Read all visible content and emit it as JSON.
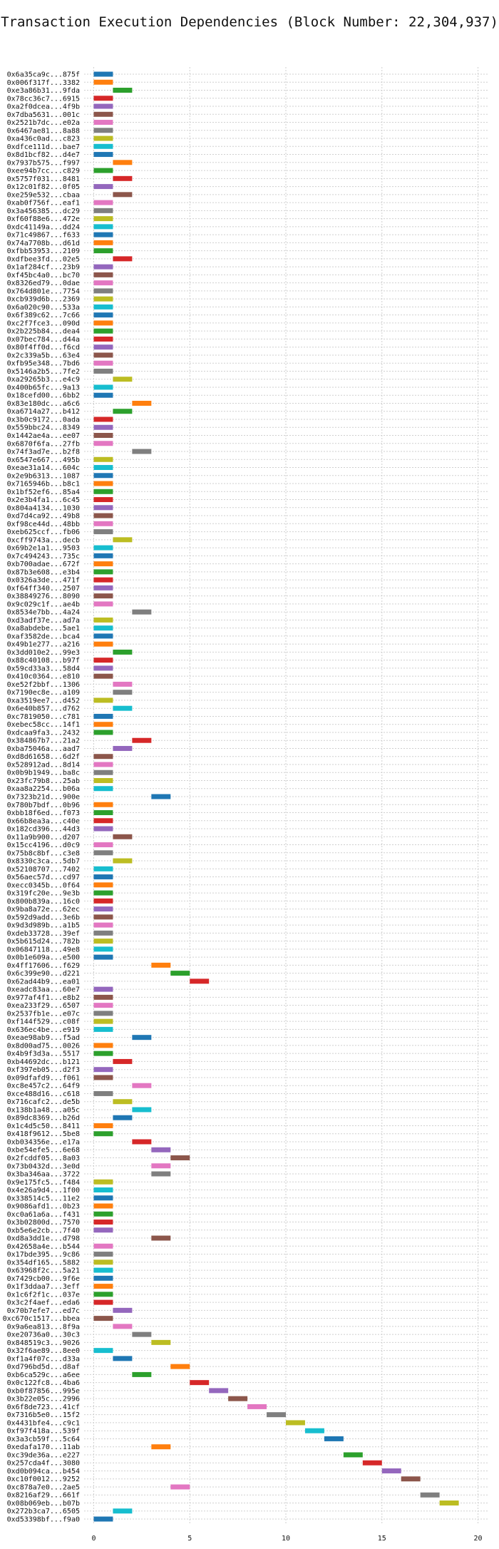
{
  "chart_data": {
    "type": "bar",
    "orientation": "horizontal",
    "title": "Transaction Execution Dependencies (Block Number: 22,304,937)",
    "xlabel": "",
    "ylabel": "",
    "xlim": [
      -0.5,
      20.5
    ],
    "xticks": [
      0,
      5,
      10,
      15,
      20
    ],
    "grid": true,
    "bar_width": 1,
    "palette": [
      "#1f77b4",
      "#ff7f0e",
      "#2ca02c",
      "#d62728",
      "#9467bd",
      "#8c564b",
      "#e377c2",
      "#7f7f7f",
      "#bcbd22",
      "#17becf"
    ],
    "transactions": [
      [
        "0x6a35ca9c...875f",
        0
      ],
      [
        "0x006f317f...3382",
        0
      ],
      [
        "0xe3a86b31...9fda",
        1
      ],
      [
        "0x78cc36c7...6915",
        0
      ],
      [
        "0xa2f0dcea...4f9b",
        0
      ],
      [
        "0x7dba5631...001c",
        0
      ],
      [
        "0x2521b7dc...e02a",
        0
      ],
      [
        "0x6467ae81...8a88",
        0
      ],
      [
        "0xa436c0ad...c823",
        0
      ],
      [
        "0xdfce111d...bae7",
        0
      ],
      [
        "0x8d1bcf82...d4e7",
        0
      ],
      [
        "0x7937b575...f997",
        1
      ],
      [
        "0xee94b7cc...c829",
        0
      ],
      [
        "0x5757f031...8481",
        1
      ],
      [
        "0x12c01f82...0f05",
        0
      ],
      [
        "0xe259e532...cbaa",
        1
      ],
      [
        "0xab0f756f...eaf1",
        0
      ],
      [
        "0x3a456385...dc29",
        0
      ],
      [
        "0xf60f88e6...472e",
        0
      ],
      [
        "0xdc41149a...dd24",
        0
      ],
      [
        "0x71c49867...f633",
        0
      ],
      [
        "0x74a7708b...d61d",
        0
      ],
      [
        "0xfbb53953...2109",
        0
      ],
      [
        "0xdfbee3fd...02e5",
        1
      ],
      [
        "0x1af284cf...23b9",
        0
      ],
      [
        "0xf45bc4a0...bc70",
        0
      ],
      [
        "0x8326ed79...0dae",
        0
      ],
      [
        "0x764d801e...7754",
        0
      ],
      [
        "0xcb939d6b...2369",
        0
      ],
      [
        "0x6a020c90...533a",
        0
      ],
      [
        "0x6f389c62...7c66",
        0
      ],
      [
        "0xc2f7fce3...090d",
        0
      ],
      [
        "0x2b225b84...dea4",
        0
      ],
      [
        "0x07bec784...d44a",
        0
      ],
      [
        "0x80f4ff0d...f6cd",
        0
      ],
      [
        "0x2c339a5b...63e4",
        0
      ],
      [
        "0xfb95e348...7bd6",
        0
      ],
      [
        "0x5146a2b5...7fe2",
        0
      ],
      [
        "0xa29265b3...e4c9",
        1
      ],
      [
        "0x400b65fc...9a13",
        0
      ],
      [
        "0x18cefd00...6bb2",
        0
      ],
      [
        "0x83e180dc...a6c6",
        2
      ],
      [
        "0xa6714a27...b412",
        1
      ],
      [
        "0x3b0c9172...0ada",
        0
      ],
      [
        "0x559bbc24...8349",
        0
      ],
      [
        "0x1442ae4a...ee07",
        0
      ],
      [
        "0x6870f6fa...27fb",
        0
      ],
      [
        "0x74f3ad7e...b2f8",
        2
      ],
      [
        "0x6547e667...495b",
        0
      ],
      [
        "0xeae31a14...604c",
        0
      ],
      [
        "0x2e9b6313...1087",
        0
      ],
      [
        "0x7165946b...b8c1",
        0
      ],
      [
        "0x1bf52ef6...85a4",
        0
      ],
      [
        "0x2e3b4fa1...6c45",
        0
      ],
      [
        "0x804a4134...1030",
        0
      ],
      [
        "0xd7d4ca92...49b8",
        0
      ],
      [
        "0xf98ce44d...48bb",
        0
      ],
      [
        "0xeb625ccf...fb06",
        0
      ],
      [
        "0xcff9743a...decb",
        1
      ],
      [
        "0x69b2e1a1...9503",
        0
      ],
      [
        "0x7c494243...735c",
        0
      ],
      [
        "0xb700adae...672f",
        0
      ],
      [
        "0x87b3e608...e3b4",
        0
      ],
      [
        "0x0326a3de...471f",
        0
      ],
      [
        "0xf64ff340...2507",
        0
      ],
      [
        "0x38849276...8090",
        0
      ],
      [
        "0x9c029c1f...ae4b",
        0
      ],
      [
        "0x8534e7bb...4a24",
        2
      ],
      [
        "0xd3adf37e...ad7a",
        0
      ],
      [
        "0xa8abdebe...5ae1",
        0
      ],
      [
        "0xaf3582de...bca4",
        0
      ],
      [
        "0x49b1e277...a216",
        0
      ],
      [
        "0x3dd010e2...99e3",
        1
      ],
      [
        "0x88c40108...b97f",
        0
      ],
      [
        "0x59cd33a3...58d4",
        0
      ],
      [
        "0x410c0364...e810",
        0
      ],
      [
        "0xe52f2bbf...1306",
        1
      ],
      [
        "0x7190ec8e...a109",
        1
      ],
      [
        "0xa3519ee7...d452",
        0
      ],
      [
        "0x6e40b857...d762",
        1
      ],
      [
        "0xc7819050...c781",
        0
      ],
      [
        "0xebec58cc...14f1",
        0
      ],
      [
        "0xdcaa9fa3...2432",
        0
      ],
      [
        "0x384867b7...21a2",
        2
      ],
      [
        "0xba75046a...aad7",
        1
      ],
      [
        "0xd8d61658...6d2f",
        0
      ],
      [
        "0x528912ad...8d14",
        0
      ],
      [
        "0x0b9b1949...ba8c",
        0
      ],
      [
        "0x23fc79b8...25ab",
        0
      ],
      [
        "0xaa8a2254...b06a",
        0
      ],
      [
        "0x7323b21d...900e",
        3
      ],
      [
        "0x780b7bdf...0b96",
        0
      ],
      [
        "0xbb18f6ed...f073",
        0
      ],
      [
        "0x66b8ea3a...c40e",
        0
      ],
      [
        "0x182cd396...44d3",
        0
      ],
      [
        "0x11a9b900...d207",
        1
      ],
      [
        "0x15cc4196...d0c9",
        0
      ],
      [
        "0x75b8c8bf...c3e8",
        0
      ],
      [
        "0x8330c3ca...5db7",
        1
      ],
      [
        "0x52108707...7402",
        0
      ],
      [
        "0x56aec57d...cd97",
        0
      ],
      [
        "0xecc0345b...0f64",
        0
      ],
      [
        "0x319fc20e...9e3b",
        0
      ],
      [
        "0x800b839a...16c0",
        0
      ],
      [
        "0x9ba8a72e...62ec",
        0
      ],
      [
        "0x592d9add...3e6b",
        0
      ],
      [
        "0x9d3d989b...a1b5",
        0
      ],
      [
        "0xdeb33728...39ef",
        0
      ],
      [
        "0x5b615d24...782b",
        0
      ],
      [
        "0x06847118...49e8",
        0
      ],
      [
        "0x0b1e609a...e500",
        0
      ],
      [
        "0x4ff17606...f629",
        3
      ],
      [
        "0x6c399e90...d221",
        4
      ],
      [
        "0x62ad44b9...ea01",
        5
      ],
      [
        "0xeadc83aa...60e7",
        0
      ],
      [
        "0x977af4f1...e8b2",
        0
      ],
      [
        "0xea233f29...6507",
        0
      ],
      [
        "0x2537fb1e...e07c",
        0
      ],
      [
        "0xf144f529...c08f",
        0
      ],
      [
        "0x636ec4be...e919",
        0
      ],
      [
        "0xeae98ab9...f5ad",
        2
      ],
      [
        "0x8d00ad75...0026",
        0
      ],
      [
        "0x4b9f3d3a...5517",
        0
      ],
      [
        "0xb44692dc...b121",
        1
      ],
      [
        "0xf397eb05...d2f3",
        0
      ],
      [
        "0x09dfafd9...f061",
        0
      ],
      [
        "0xc8e457c2...64f9",
        2
      ],
      [
        "0xce488d16...c618",
        0
      ],
      [
        "0x716cafc2...de5b",
        1
      ],
      [
        "0x138b1a48...a05c",
        2
      ],
      [
        "0x89dc8369...b26d",
        1
      ],
      [
        "0x1c4d5c50...8411",
        0
      ],
      [
        "0x418f9612...5be8",
        0
      ],
      [
        "0xb034356e...e17a",
        2
      ],
      [
        "0xbe54efe5...6e68",
        3
      ],
      [
        "0x2fcddf05...8a03",
        4
      ],
      [
        "0x73b0432d...3e0d",
        3
      ],
      [
        "0x3ba346aa...3722",
        3
      ],
      [
        "0x9e175fc5...f484",
        0
      ],
      [
        "0x4e26a9d4...1f00",
        0
      ],
      [
        "0x338514c5...11e2",
        0
      ],
      [
        "0x9086afd1...0b23",
        0
      ],
      [
        "0xc0a61a6a...f431",
        0
      ],
      [
        "0x3b02800d...7570",
        0
      ],
      [
        "0xb5e6e2cb...7f40",
        0
      ],
      [
        "0xd8a3dd1e...d798",
        3
      ],
      [
        "0x42658a4e...b544",
        0
      ],
      [
        "0x17bde395...9c86",
        0
      ],
      [
        "0x354df165...5882",
        0
      ],
      [
        "0x63968f2c...5a21",
        0
      ],
      [
        "0x7429cb00...9f6e",
        0
      ],
      [
        "0x1f3ddaa7...3eff",
        0
      ],
      [
        "0x1c6f2f1c...037e",
        0
      ],
      [
        "0x3c2f4aef...eda6",
        0
      ],
      [
        "0x70b7efe7...ed7c",
        1
      ],
      [
        "0xc670c1517...bbea",
        0
      ],
      [
        "0x9a6ea813...8f9a",
        1
      ],
      [
        "0xe20736a0...30c3",
        2
      ],
      [
        "0x848519c3...9026",
        3
      ],
      [
        "0x32f6ae89...8ee0",
        0
      ],
      [
        "0xf1a4f07c...d33a",
        1
      ],
      [
        "0xd796bd5d...d8af",
        4
      ],
      [
        "0xb6ca529c...a6ee",
        2
      ],
      [
        "0x0c122fc8...4ba6",
        5
      ],
      [
        "0xb0f87856...995e",
        6
      ],
      [
        "0x3b22e05c...2996",
        7
      ],
      [
        "0x6f8de723...41cf",
        8
      ],
      [
        "0x7316b5e0...15f2",
        9
      ],
      [
        "0x4431bfe4...c9c1",
        10
      ],
      [
        "0xf97f418a...539f",
        11
      ],
      [
        "0x3a3cb59f...5c64",
        12
      ],
      [
        "0xedafa170...11ab",
        3
      ],
      [
        "0xc39de36a...e227",
        13
      ],
      [
        "0x257cda4f...3080",
        14
      ],
      [
        "0xd0b094ca...b454",
        15
      ],
      [
        "0xc10f0012...9252",
        16
      ],
      [
        "0xc878a7e0...2ae5",
        4
      ],
      [
        "0x8216af29...661f",
        17
      ],
      [
        "0x08b069eb...b07b",
        18
      ],
      [
        "0x272b3ca7...6505",
        1
      ],
      [
        "0xd53398bf...f9a0",
        0
      ]
    ]
  }
}
